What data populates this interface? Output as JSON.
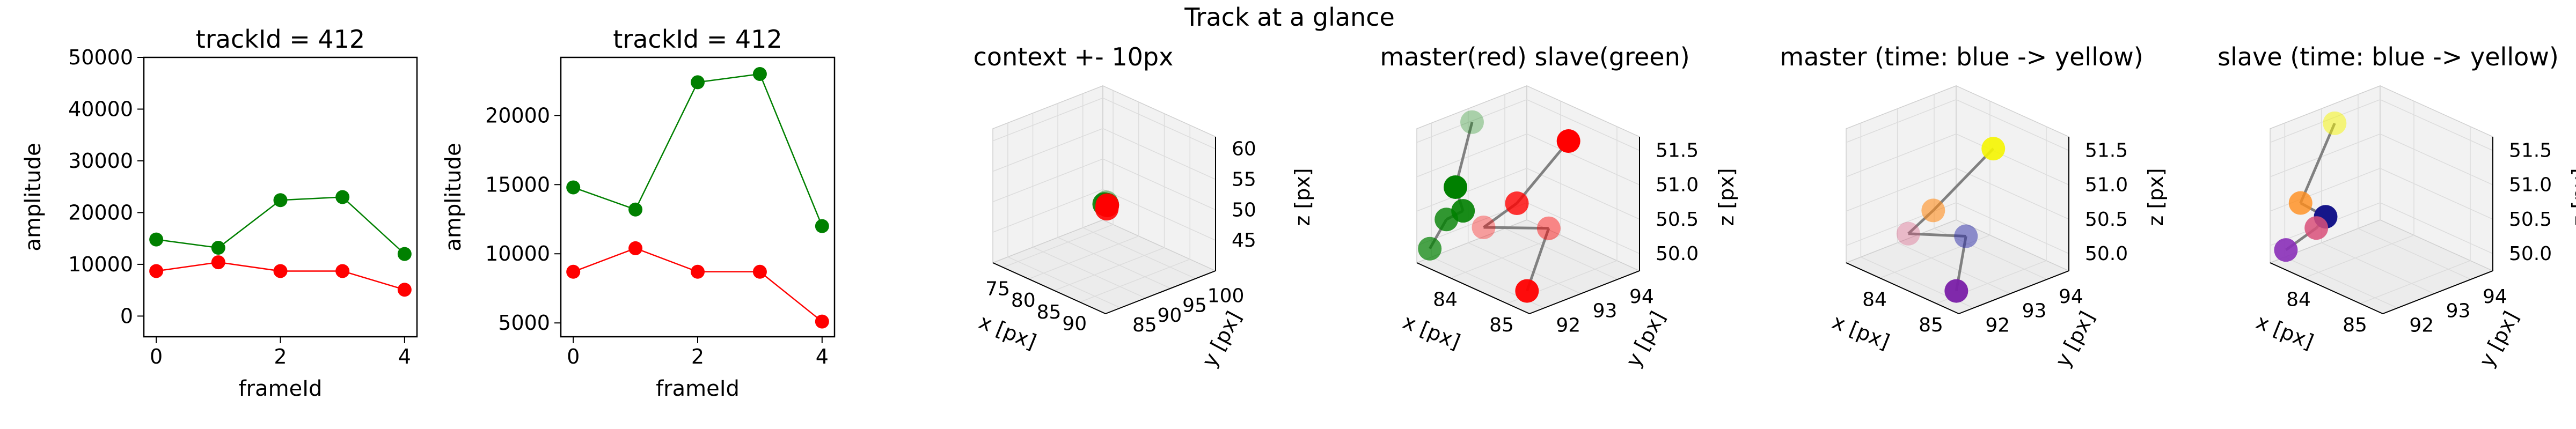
{
  "figure": {
    "suptitle": "Track at a glance"
  },
  "colors": {
    "master": "#ff0000",
    "slave": "#008000",
    "link": "#808080",
    "pane": "#f2f2f2",
    "grid": "#dcdcdc"
  },
  "chart_data": [
    {
      "type": "line",
      "title": "trackId = 412",
      "xlabel": "frameId",
      "ylabel": "amplitude",
      "xlim": [
        -0.2,
        4.2
      ],
      "ylim": [
        -4000,
        50000
      ],
      "xticks": [
        "0",
        "2",
        "4"
      ],
      "yticks": [
        "0",
        "10000",
        "20000",
        "30000",
        "40000",
        "50000"
      ],
      "x": [
        0,
        1,
        2,
        3,
        4
      ],
      "series": [
        {
          "color": "#008000",
          "values": [
            14800,
            13200,
            22400,
            23000,
            12000
          ]
        },
        {
          "color": "#ff0000",
          "values": [
            8700,
            10400,
            8700,
            8700,
            5100
          ]
        }
      ]
    },
    {
      "type": "line",
      "title": "trackId = 412",
      "xlabel": "frameId",
      "ylabel": "amplitude",
      "xlim": [
        -0.2,
        4.2
      ],
      "ylim": [
        4000,
        24200
      ],
      "xticks": [
        "0",
        "2",
        "4"
      ],
      "yticks": [
        "5000",
        "10000",
        "15000",
        "20000"
      ],
      "x": [
        0,
        1,
        2,
        3,
        4
      ],
      "series": [
        {
          "color": "#008000",
          "values": [
            14800,
            13200,
            22400,
            23000,
            12000
          ]
        },
        {
          "color": "#ff0000",
          "values": [
            8700,
            10400,
            8700,
            8700,
            5100
          ]
        }
      ]
    },
    {
      "type": "scatter",
      "projection": "3d",
      "title": "context +- 10px",
      "xlabel": "x [px]",
      "ylabel": "y [px]",
      "zlabel": "z [px]",
      "xlim": [
        73,
        95
      ],
      "ylim": [
        82,
        104
      ],
      "zlim": [
        40,
        62
      ],
      "xticks": [
        "75",
        "80",
        "85",
        "90"
      ],
      "yticks": [
        "85",
        "90",
        "95",
        "100"
      ],
      "zticks": [
        "45",
        "50",
        "55",
        "60"
      ],
      "points": [
        {
          "x": 84.2,
          "y": 93.2,
          "z": 50.6,
          "color": "#008000",
          "alpha": 0.4
        },
        {
          "x": 84.0,
          "y": 93.0,
          "z": 50.3,
          "color": "#008000",
          "alpha": 0.9
        },
        {
          "x": 84.3,
          "y": 93.3,
          "z": 50.2,
          "color": "#008000",
          "alpha": 0.9
        },
        {
          "x": 84.9,
          "y": 92.6,
          "z": 50.0,
          "color": "#ff0000",
          "alpha": 0.9
        },
        {
          "x": 84.6,
          "y": 93.0,
          "z": 50.3,
          "color": "#ff0000",
          "alpha": 0.9
        },
        {
          "x": 84.8,
          "y": 92.8,
          "z": 50.5,
          "color": "#ff0000",
          "alpha": 0.6
        }
      ]
    },
    {
      "type": "scatter",
      "projection": "3d",
      "title": "master(red) slave(green)",
      "xlabel": "x [px]",
      "ylabel": "y [px]",
      "zlabel": "z [px]",
      "xlim": [
        83.4,
        85.4
      ],
      "ylim": [
        91.6,
        94.6
      ],
      "zlim": [
        49.75,
        51.7
      ],
      "xticks": [
        "84",
        "85"
      ],
      "yticks": [
        "92",
        "93",
        "94"
      ],
      "zticks": [
        "50.0",
        "50.5",
        "51.0",
        "51.5"
      ],
      "points": [
        {
          "x": 83.6,
          "y": 92.8,
          "z": 51.62,
          "color": "#008000",
          "alpha": 0.3
        },
        {
          "x": 83.5,
          "y": 92.5,
          "z": 50.7,
          "color": "#008000",
          "alpha": 1.0
        },
        {
          "x": 83.7,
          "y": 92.4,
          "z": 50.45,
          "color": "#008000",
          "alpha": 0.9
        },
        {
          "x": 83.6,
          "y": 92.1,
          "z": 50.35,
          "color": "#008000",
          "alpha": 0.8
        },
        {
          "x": 83.5,
          "y": 91.8,
          "z": 49.95,
          "color": "#008000",
          "alpha": 0.7
        },
        {
          "x": 84.4,
          "y": 94.2,
          "z": 51.35,
          "color": "#ff0000",
          "alpha": 1.0
        },
        {
          "x": 84.2,
          "y": 93.1,
          "z": 50.6,
          "color": "#ff0000",
          "alpha": 0.8
        },
        {
          "x": 84.7,
          "y": 93.2,
          "z": 50.4,
          "color": "#ff0000",
          "alpha": 0.45
        },
        {
          "x": 84.0,
          "y": 92.5,
          "z": 50.3,
          "color": "#ff0000",
          "alpha": 0.35
        },
        {
          "x": 84.9,
          "y": 92.3,
          "z": 49.75,
          "color": "#ff0000",
          "alpha": 0.95
        }
      ],
      "links": [
        [
          0,
          1
        ],
        [
          1,
          2
        ],
        [
          2,
          3
        ],
        [
          3,
          4
        ],
        [
          5,
          6
        ],
        [
          6,
          8
        ],
        [
          8,
          7
        ],
        [
          7,
          9
        ]
      ]
    },
    {
      "type": "scatter",
      "projection": "3d",
      "title": "master (time: blue -> yellow)",
      "xlabel": "x [px]",
      "ylabel": "y [px]",
      "zlabel": "z [px]",
      "xlim": [
        83.4,
        85.4
      ],
      "ylim": [
        91.6,
        94.6
      ],
      "zlim": [
        49.75,
        51.7
      ],
      "xticks": [
        "84",
        "85"
      ],
      "yticks": [
        "92",
        "93",
        "94"
      ],
      "zticks": [
        "50.0",
        "50.5",
        "51.0",
        "51.5"
      ],
      "points": [
        {
          "x": 84.45,
          "y": 94.0,
          "z": 51.3,
          "color": "#f5f500",
          "alpha": 0.9
        },
        {
          "x": 84.1,
          "y": 92.9,
          "z": 50.5,
          "color": "#ff8c1a",
          "alpha": 0.6
        },
        {
          "x": 84.55,
          "y": 93.1,
          "z": 50.25,
          "color": "#2a2aa8",
          "alpha": 0.5
        },
        {
          "x": 83.95,
          "y": 92.45,
          "z": 50.2,
          "color": "#d9507a",
          "alpha": 0.35
        },
        {
          "x": 84.9,
          "y": 92.3,
          "z": 49.75,
          "color": "#7a1fa8",
          "alpha": 0.95
        }
      ],
      "links": [
        [
          0,
          1
        ],
        [
          1,
          3
        ],
        [
          3,
          2
        ],
        [
          2,
          4
        ]
      ]
    },
    {
      "type": "scatter",
      "projection": "3d",
      "title": "slave (time: blue -> yellow)",
      "xlabel": "x [px]",
      "ylabel": "y [px]",
      "zlabel": "z [px]",
      "xlim": [
        83.4,
        85.4
      ],
      "ylim": [
        91.6,
        94.6
      ],
      "zlim": [
        49.75,
        51.7
      ],
      "xticks": [
        "84",
        "85"
      ],
      "yticks": [
        "92",
        "93",
        "94"
      ],
      "zticks": [
        "50.0",
        "50.5",
        "51.0",
        "51.5"
      ],
      "points": [
        {
          "x": 83.7,
          "y": 92.9,
          "z": 51.62,
          "color": "#f5f500",
          "alpha": 0.5
        },
        {
          "x": 83.55,
          "y": 92.2,
          "z": 50.55,
          "color": "#ff8c1a",
          "alpha": 0.8
        },
        {
          "x": 83.8,
          "y": 92.5,
          "z": 50.38,
          "color": "#16168a",
          "alpha": 1.0
        },
        {
          "x": 83.7,
          "y": 92.4,
          "z": 50.2,
          "color": "#d9507a",
          "alpha": 0.85
        },
        {
          "x": 83.55,
          "y": 91.8,
          "z": 49.95,
          "color": "#8a2fb8",
          "alpha": 0.9
        }
      ],
      "links": [
        [
          0,
          1
        ],
        [
          1,
          2
        ],
        [
          2,
          3
        ],
        [
          3,
          4
        ]
      ]
    }
  ]
}
